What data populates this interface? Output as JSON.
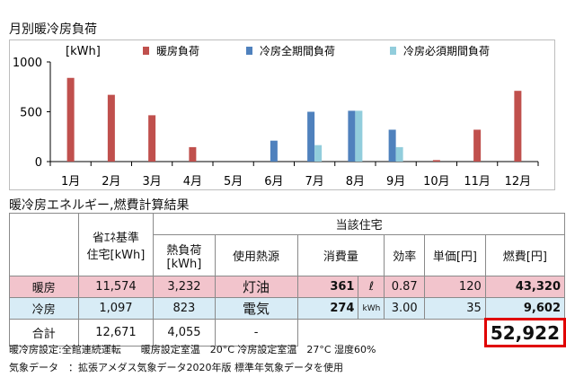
{
  "chart_title": "月別暖冷房負荷",
  "chart_data": {
    "type": "bar",
    "ylabel": "[kWh]",
    "ylim": [
      0,
      1000
    ],
    "yticks": [
      0,
      500,
      1000
    ],
    "categories": [
      "1月",
      "2月",
      "3月",
      "4月",
      "5月",
      "6月",
      "7月",
      "8月",
      "9月",
      "10月",
      "11月",
      "12月"
    ],
    "series": [
      {
        "name": "暖房負荷",
        "color": "#c0504d",
        "values": [
          840,
          670,
          465,
          145,
          0,
          0,
          0,
          0,
          0,
          15,
          320,
          710
        ]
      },
      {
        "name": "冷房全期間負荷",
        "color": "#4f81bd",
        "values": [
          0,
          0,
          0,
          0,
          0,
          210,
          500,
          510,
          320,
          0,
          0,
          0
        ]
      },
      {
        "name": "冷房必須期間負荷",
        "color": "#92cddc",
        "values": [
          0,
          0,
          0,
          0,
          0,
          0,
          165,
          510,
          145,
          0,
          0,
          0
        ]
      }
    ],
    "legend": "top"
  },
  "table_title": "暖冷房エネルギー,燃費計算結果",
  "table": {
    "header": {
      "col1_line1": "省ｴﾈ基準",
      "col1_line2": "住宅[kWh]",
      "group": "当該住宅",
      "heat_load_line1": "熱負荷",
      "heat_load_line2": "[kWh]",
      "source": "使用熱源",
      "consumption": "消費量",
      "efficiency": "効率",
      "unit_price": "単価[円]",
      "fuel_cost": "燃費[円]"
    },
    "rows": [
      {
        "label": "暖房",
        "std": "11,574",
        "load": "3,232",
        "source": "灯油",
        "consumption": "361",
        "unit": "ℓ",
        "efficiency": "0.87",
        "price": "120",
        "cost": "43,320"
      },
      {
        "label": "冷房",
        "std": "1,097",
        "load": "823",
        "source": "電気",
        "consumption": "274",
        "unit": "kWh",
        "efficiency": "3.00",
        "price": "35",
        "cost": "9,602"
      }
    ],
    "total": {
      "label": "合計",
      "std": "12,671",
      "load": "4,055",
      "source": "-",
      "cost": "52,922"
    }
  },
  "footnote1": "暖冷房設定:全館連続運転　　暖房設定室温　20°C 冷房設定室温　27°C 湿度60%",
  "footnote2": "気象データ　：拡張アメダス気象データ2020年版 標準年気象データを使用"
}
